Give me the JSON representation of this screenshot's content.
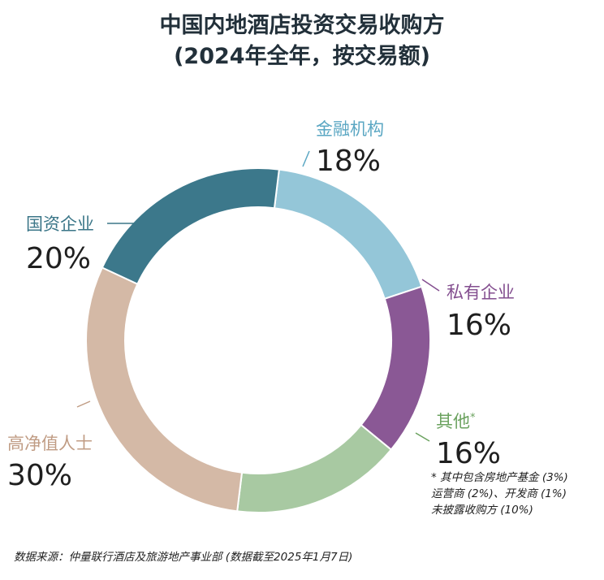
{
  "chart_data": {
    "type": "pie",
    "title_line1": "中国内地酒店投资交易收购方",
    "title_line2": "(2024年全年，按交易额)",
    "slices": [
      {
        "label": "金融机构",
        "value": 18,
        "value_label": "18%",
        "color": "#94c6d8",
        "label_color": "#5ba7c3"
      },
      {
        "label": "私有企业",
        "value": 16,
        "value_label": "16%",
        "color": "#8a5895",
        "label_color": "#834e8f"
      },
      {
        "label": "其他",
        "label_suffix": "*",
        "value": 16,
        "value_label": "16%",
        "color": "#a8c9a2",
        "label_color": "#6ba25f"
      },
      {
        "label": "高净值人士",
        "value": 30,
        "value_label": "30%",
        "color": "#d4b9a6",
        "label_color": "#c09c84"
      },
      {
        "label": "国资企业",
        "value": 20,
        "value_label": "20%",
        "color": "#3c788b",
        "label_color": "#3b7688"
      }
    ],
    "footnote": [
      "* 其中包含房地产基金 (3%)",
      "运营商 (2%)、开发商 (1%)",
      "未披露收购方 (10%)"
    ]
  },
  "source": "数据来源：仲量联行酒店及旅游地产事业部 (数据截至2025年1月7日)"
}
